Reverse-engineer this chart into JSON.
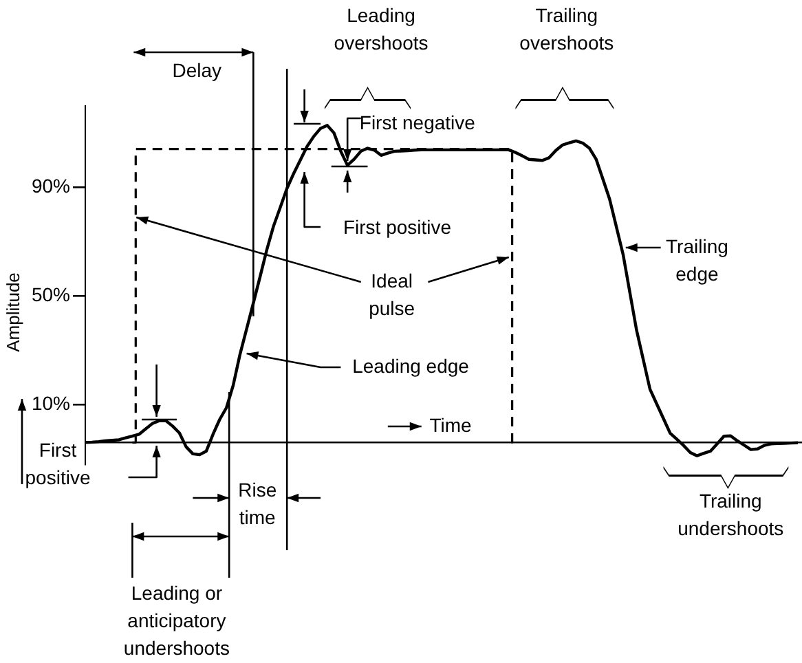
{
  "chart_data": {
    "type": "line",
    "ylabel": "Amplitude",
    "xlabel": "Time",
    "ylim": [
      -12,
      120
    ],
    "yticks": [
      {
        "value": 10,
        "label": "10%"
      },
      {
        "value": 50,
        "label": "50%"
      },
      {
        "value": 90,
        "label": "90%"
      }
    ],
    "tick_labels": "y",
    "marker": "none",
    "line_style": "solid",
    "categories": [
      null,
      null,
      null,
      null,
      null,
      null,
      null,
      null,
      null,
      null,
      null,
      null,
      null,
      null,
      null,
      null,
      null,
      null,
      null,
      null,
      null,
      null,
      null,
      null,
      null,
      null,
      null,
      null,
      null,
      null,
      null,
      null,
      null,
      null,
      null,
      null,
      null,
      null,
      null,
      null,
      null,
      null,
      null,
      null,
      null,
      null,
      null,
      null,
      null,
      null,
      null,
      null,
      null,
      null,
      null,
      null,
      null,
      null,
      null,
      null,
      null,
      null,
      null,
      null,
      null,
      null,
      null,
      null,
      null,
      null,
      null,
      null,
      null,
      null,
      null,
      null,
      null,
      null,
      null,
      null,
      null,
      null,
      null,
      null,
      null,
      null,
      null,
      null,
      null,
      null,
      null,
      null,
      null,
      null,
      null,
      null,
      null,
      null,
      null,
      null,
      null,
      null,
      null,
      null,
      null,
      null,
      null
    ],
    "ref_lines": [
      {
        "axis": "y",
        "value": -4
      }
    ],
    "annotations": [
      "Delay",
      "Leading overshoots",
      "Trailing overshoots",
      "First negative",
      "First positive",
      "Leading edge",
      "Trailing edge",
      "First positive",
      "Rise time",
      "Leading or anticipatory undershoots",
      "Trailing undershoots"
    ],
    "series": [
      {
        "color": "#000000",
        "values": [
          -4,
          -3.9,
          -3.7,
          -3.4,
          -3.2,
          -3,
          -2.3,
          -1.7,
          -1,
          1,
          3,
          4,
          4,
          2,
          -0.5,
          -5.6,
          -8.2,
          -8.5,
          -7.2,
          -1,
          4.5,
          8.8,
          17,
          28.3,
          37.8,
          47.3,
          57,
          66.9,
          75.6,
          82.5,
          89.5,
          95,
          100,
          105,
          108.7,
          111.6,
          112.7,
          109.9,
          103.2,
          98,
          100.3,
          103.2,
          104.3,
          103.6,
          101.7,
          102.5,
          103.2,
          103.3,
          103.4,
          103.6,
          103.7,
          103.7,
          103.7,
          103.7,
          103.7,
          103.7,
          103.7,
          103.7,
          103.7,
          103.7,
          103.7,
          103.7,
          103.7,
          103.7,
          102.7,
          101.5,
          100.2,
          100,
          99.8,
          100.8,
          103.5,
          105.5,
          106.3,
          107,
          106.2,
          104.3,
          100.2,
          92.9,
          85.5,
          75.4,
          65.2,
          51.3,
          37.4,
          26.5,
          15.6,
          10.2,
          4.8,
          -0.6,
          -2.8,
          -5.1,
          -7.7,
          -8.9,
          -8,
          -7.2,
          -4.5,
          -1.7,
          -1.6,
          -3.4,
          -5,
          -6.6,
          -6.4,
          -5.1,
          -4.5,
          -4.4,
          -4.3,
          -4.2,
          -4.1
        ]
      },
      {
        "name": "Ideal pulse",
        "type": "step",
        "color": "#000000",
        "line_style": "dashed",
        "values": [
          null,
          null,
          null,
          null,
          null,
          null,
          null,
          -4,
          104,
          104,
          104,
          104,
          104,
          104,
          104,
          104,
          104,
          104,
          104,
          104,
          104,
          104,
          104,
          104,
          104,
          104,
          104,
          104,
          104,
          104,
          104,
          104,
          104,
          104,
          104,
          104,
          104,
          104,
          104,
          104,
          104,
          104,
          104,
          104,
          104,
          104,
          104,
          104,
          104,
          104,
          104,
          104,
          104,
          104,
          104,
          104,
          104,
          104,
          104,
          104,
          104,
          104,
          104,
          104,
          -4,
          null,
          null,
          null,
          null,
          null,
          null,
          null,
          null,
          null,
          null,
          null,
          null,
          null,
          null,
          null,
          null,
          null,
          null,
          null,
          null,
          null,
          null,
          null,
          null,
          null,
          null,
          null,
          null,
          null,
          null,
          null,
          null,
          null,
          null,
          null,
          null,
          null,
          null,
          null,
          null,
          null,
          null
        ]
      }
    ]
  }
}
